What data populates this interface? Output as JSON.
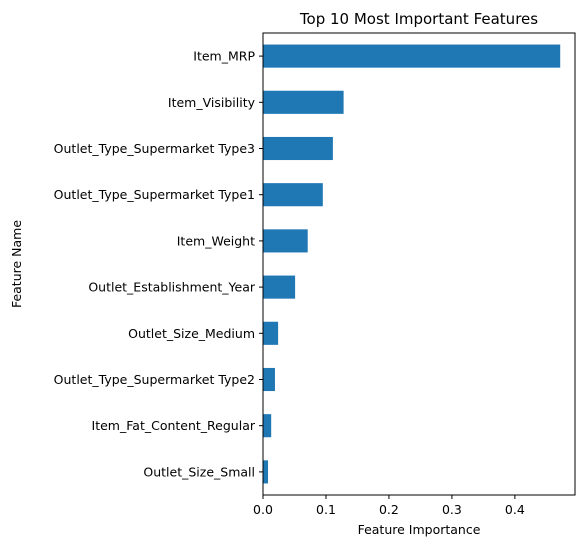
{
  "chart_data": {
    "type": "bar",
    "orientation": "horizontal",
    "title": "Top 10 Most Important Features",
    "xlabel": "Feature Importance",
    "ylabel": "Feature Name",
    "categories": [
      "Item_MRP",
      "Item_Visibility",
      "Outlet_Type_Supermarket Type3",
      "Outlet_Type_Supermarket Type1",
      "Item_Weight",
      "Outlet_Establishment_Year",
      "Outlet_Size_Medium",
      "Outlet_Type_Supermarket Type2",
      "Item_Fat_Content_Regular",
      "Outlet_Size_Small"
    ],
    "values": [
      0.472,
      0.128,
      0.111,
      0.095,
      0.071,
      0.051,
      0.024,
      0.019,
      0.013,
      0.008
    ],
    "xlim": [
      0,
      0.4955
    ],
    "xticks": [
      "0.0",
      "0.1",
      "0.2",
      "0.3",
      "0.4"
    ],
    "grid": false,
    "bar_color": "#1f77b4"
  }
}
